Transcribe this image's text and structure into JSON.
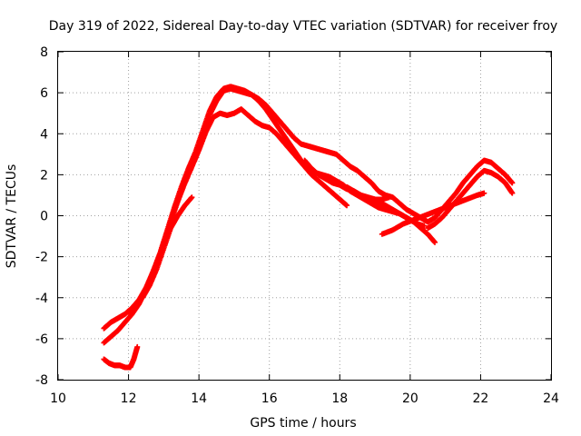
{
  "chart_data": {
    "type": "scatter",
    "title": "Day 319 of 2022, Sidereal Day-to-day VTEC variation (SDTVAR) for receiver froy",
    "xlabel": "GPS time / hours",
    "ylabel": "SDTVAR / TECUs",
    "xlim": [
      10,
      24
    ],
    "ylim": [
      -8,
      8
    ],
    "x_ticks": [
      "10",
      "12",
      "14",
      "16",
      "18",
      "20",
      "22",
      "24"
    ],
    "y_ticks": [
      "-8",
      "-6",
      "-4",
      "-2",
      "0",
      "2",
      "4",
      "6",
      "8"
    ],
    "grid": true,
    "marker": "+",
    "color": "#ff0000",
    "series": [
      {
        "name": "track-1",
        "x": [
          11.3,
          11.5,
          11.7,
          11.9,
          12.1,
          12.3,
          12.5,
          12.7,
          12.9,
          13.1,
          13.3,
          13.5,
          13.7,
          13.9,
          14.1,
          14.3,
          14.5,
          14.7,
          14.9,
          15.1,
          15.3,
          15.5,
          15.7,
          15.9,
          16.1,
          16.3,
          16.5,
          16.7,
          16.9,
          17.1,
          17.3,
          17.5,
          17.7,
          17.9,
          18.1,
          18.3,
          18.5,
          18.7,
          18.9,
          19.1,
          19.3,
          19.5,
          19.7,
          19.9,
          20.1,
          20.3,
          20.5,
          20.7,
          20.9,
          21.1,
          21.3,
          21.5,
          21.7,
          21.9,
          22.1,
          22.3,
          22.5,
          22.7,
          22.9
        ],
        "y": [
          -6.2,
          -5.9,
          -5.6,
          -5.2,
          -4.8,
          -4.3,
          -3.6,
          -2.8,
          -1.9,
          -0.8,
          0.3,
          1.2,
          2.0,
          2.8,
          3.8,
          4.9,
          5.6,
          6.1,
          6.2,
          6.1,
          6.0,
          5.9,
          5.7,
          5.4,
          5.0,
          4.6,
          4.2,
          3.8,
          3.5,
          3.4,
          3.3,
          3.2,
          3.1,
          3.0,
          2.7,
          2.4,
          2.2,
          1.9,
          1.6,
          1.2,
          1.0,
          0.9,
          0.6,
          0.3,
          0.1,
          -0.1,
          -0.3,
          -0.1,
          0.3,
          0.7,
          1.1,
          1.6,
          2.0,
          2.4,
          2.7,
          2.6,
          2.3,
          2.0,
          1.6
        ]
      },
      {
        "name": "track-2",
        "x": [
          11.3,
          11.5,
          11.7,
          11.9,
          12.1,
          12.3,
          12.5,
          12.7,
          12.9,
          13.1,
          13.3,
          13.5,
          13.7,
          13.9,
          14.1,
          14.3,
          14.5,
          14.7,
          14.9,
          15.1,
          15.3,
          15.5,
          15.7,
          15.9,
          16.1,
          16.3,
          16.5,
          16.7,
          16.9,
          17.1,
          17.3,
          17.5,
          17.7,
          17.9,
          18.1,
          18.3,
          18.5,
          18.7,
          18.9,
          19.1,
          19.3,
          19.5,
          19.7,
          19.9,
          20.1,
          20.3,
          20.5,
          20.7
        ],
        "y": [
          -5.5,
          -5.2,
          -5.0,
          -4.8,
          -4.5,
          -4.1,
          -3.5,
          -2.7,
          -1.8,
          -0.7,
          0.4,
          1.4,
          2.3,
          3.1,
          4.1,
          5.1,
          5.8,
          6.2,
          6.3,
          6.2,
          6.1,
          5.9,
          5.6,
          5.2,
          4.7,
          4.2,
          3.7,
          3.2,
          2.7,
          2.3,
          2.1,
          2.0,
          1.9,
          1.7,
          1.5,
          1.2,
          1.0,
          0.8,
          0.6,
          0.4,
          0.3,
          0.2,
          0.1,
          -0.1,
          -0.3,
          -0.6,
          -0.9,
          -1.3
        ]
      },
      {
        "name": "track-3",
        "x": [
          12.0,
          12.2,
          12.4,
          12.6,
          12.8,
          13.0,
          13.2,
          13.4,
          13.6,
          13.8,
          14.0,
          14.2,
          14.4,
          14.6,
          14.8,
          15.0,
          15.2,
          15.4,
          15.6,
          15.8,
          16.0,
          16.2,
          16.4,
          16.6,
          16.8,
          17.0,
          17.2,
          17.4,
          17.6,
          17.8,
          18.0,
          18.2
        ],
        "y": [
          -4.7,
          -4.4,
          -3.9,
          -3.2,
          -2.3,
          -1.3,
          -0.3,
          0.7,
          1.6,
          2.4,
          3.2,
          4.1,
          4.8,
          5.0,
          4.9,
          5.0,
          5.2,
          4.9,
          4.6,
          4.4,
          4.3,
          4.0,
          3.6,
          3.2,
          2.8,
          2.4,
          2.0,
          1.7,
          1.4,
          1.1,
          0.8,
          0.5
        ]
      },
      {
        "name": "track-4",
        "x": [
          12.4,
          12.6,
          12.8,
          13.0,
          13.2,
          13.4,
          13.6,
          13.8
        ],
        "y": [
          -4.0,
          -3.4,
          -2.6,
          -1.6,
          -0.6,
          0.0,
          0.5,
          0.9
        ]
      },
      {
        "name": "track-5",
        "x": [
          17.0,
          17.2,
          17.4,
          17.6,
          17.8,
          18.0,
          18.2,
          18.4,
          18.6,
          18.8,
          19.0,
          19.2,
          19.4,
          19.6,
          19.8,
          20.0,
          20.2,
          20.4
        ],
        "y": [
          2.7,
          2.3,
          2.0,
          1.8,
          1.6,
          1.5,
          1.3,
          1.2,
          1.0,
          0.8,
          0.7,
          0.6,
          0.4,
          0.2,
          0.0,
          -0.2,
          -0.4,
          -0.5
        ]
      },
      {
        "name": "track-6",
        "x": [
          18.2,
          18.4,
          18.6,
          18.8,
          19.0,
          19.2,
          19.4
        ],
        "y": [
          1.4,
          1.2,
          1.0,
          0.9,
          0.8,
          0.8,
          0.9
        ]
      },
      {
        "name": "track-7",
        "x": [
          19.2,
          19.5,
          19.8,
          20.1,
          20.4,
          20.7,
          21.0,
          21.3,
          21.6,
          21.9,
          22.1
        ],
        "y": [
          -0.9,
          -0.7,
          -0.4,
          -0.2,
          0.0,
          0.2,
          0.4,
          0.6,
          0.8,
          1.0,
          1.1
        ]
      },
      {
        "name": "track-8",
        "x": [
          20.5,
          20.7,
          20.9,
          21.1,
          21.3,
          21.5,
          21.7,
          21.9,
          22.1,
          22.3,
          22.5,
          22.7,
          22.9
        ],
        "y": [
          -0.6,
          -0.4,
          -0.1,
          0.3,
          0.7,
          1.1,
          1.5,
          1.9,
          2.2,
          2.1,
          1.9,
          1.6,
          1.1
        ]
      },
      {
        "name": "track-9",
        "x": [
          11.3,
          11.45,
          11.6,
          11.75,
          11.9,
          12.05,
          12.15,
          12.25
        ],
        "y": [
          -7.0,
          -7.2,
          -7.3,
          -7.3,
          -7.4,
          -7.4,
          -7.0,
          -6.4
        ]
      }
    ]
  }
}
